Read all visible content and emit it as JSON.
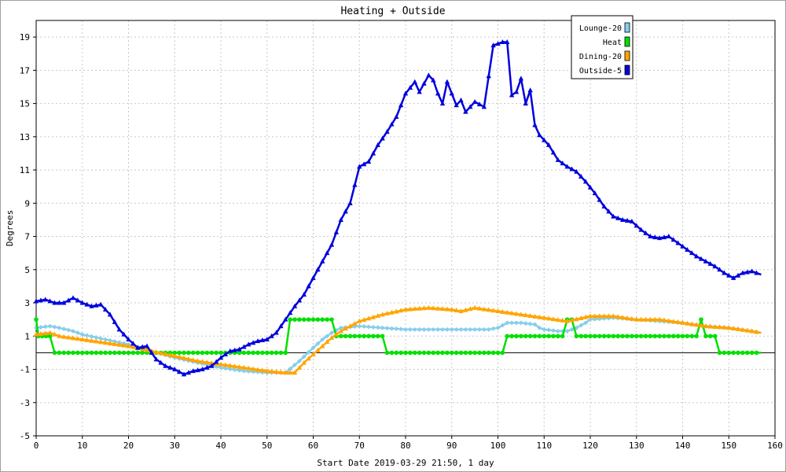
{
  "chart_data": {
    "type": "line",
    "title": "Heating + Outside",
    "xlabel": "Start Date 2019-03-29 21:50, 1 day",
    "ylabel": "Degrees",
    "xlim": [
      0,
      160
    ],
    "ylim": [
      -5,
      20
    ],
    "x_ticks": [
      0,
      10,
      20,
      30,
      40,
      50,
      60,
      70,
      80,
      90,
      100,
      110,
      120,
      130,
      140,
      150,
      160
    ],
    "y_ticks": [
      -5,
      -3,
      -1,
      1,
      3,
      5,
      7,
      9,
      11,
      13,
      15,
      17,
      19
    ],
    "grid": true,
    "zero_line": 0,
    "legend_position": "top-right",
    "series": [
      {
        "name": "Lounge-20",
        "color": "#87ceeb",
        "marker": "diamond",
        "points": [
          [
            0,
            1.5
          ],
          [
            3,
            1.6
          ],
          [
            5,
            1.5
          ],
          [
            8,
            1.3
          ],
          [
            10,
            1.1
          ],
          [
            15,
            0.8
          ],
          [
            20,
            0.5
          ],
          [
            25,
            0.1
          ],
          [
            30,
            -0.3
          ],
          [
            35,
            -0.6
          ],
          [
            40,
            -0.9
          ],
          [
            45,
            -1.1
          ],
          [
            50,
            -1.2
          ],
          [
            54,
            -1.2
          ],
          [
            57,
            -0.5
          ],
          [
            60,
            0.3
          ],
          [
            62,
            0.8
          ],
          [
            64,
            1.2
          ],
          [
            66,
            1.5
          ],
          [
            70,
            1.6
          ],
          [
            75,
            1.5
          ],
          [
            80,
            1.4
          ],
          [
            85,
            1.4
          ],
          [
            90,
            1.4
          ],
          [
            95,
            1.4
          ],
          [
            98,
            1.4
          ],
          [
            100,
            1.5
          ],
          [
            102,
            1.8
          ],
          [
            105,
            1.8
          ],
          [
            108,
            1.7
          ],
          [
            109,
            1.5
          ],
          [
            110,
            1.4
          ],
          [
            113,
            1.3
          ],
          [
            115,
            1.3
          ],
          [
            117,
            1.5
          ],
          [
            119,
            1.8
          ],
          [
            120,
            2.0
          ],
          [
            125,
            2.1
          ],
          [
            130,
            2.0
          ],
          [
            135,
            1.9
          ],
          [
            140,
            1.8
          ],
          [
            145,
            1.6
          ],
          [
            150,
            1.5
          ],
          [
            155,
            1.3
          ],
          [
            157,
            1.2
          ]
        ]
      },
      {
        "name": "Heat",
        "color": "#00e000",
        "marker": "circle",
        "points": [
          [
            0,
            2.0
          ],
          [
            0.5,
            1.0
          ],
          [
            3,
            1.0
          ],
          [
            4,
            0
          ],
          [
            54,
            0
          ],
          [
            55,
            2.0
          ],
          [
            64,
            2.0
          ],
          [
            65,
            1.0
          ],
          [
            75,
            1.0
          ],
          [
            76,
            0
          ],
          [
            101,
            0
          ],
          [
            102,
            1.0
          ],
          [
            114,
            1.0
          ],
          [
            115,
            2.0
          ],
          [
            116,
            2.0
          ],
          [
            117,
            1.0
          ],
          [
            143,
            1.0
          ],
          [
            144,
            2.0
          ],
          [
            145,
            1.0
          ],
          [
            147,
            1.0
          ],
          [
            148,
            0
          ],
          [
            157,
            0
          ]
        ]
      },
      {
        "name": "Dining-20",
        "color": "#ffa500",
        "marker": "triangle",
        "points": [
          [
            0,
            1.1
          ],
          [
            3,
            1.2
          ],
          [
            5,
            1.0
          ],
          [
            10,
            0.8
          ],
          [
            15,
            0.6
          ],
          [
            20,
            0.4
          ],
          [
            25,
            0.1
          ],
          [
            30,
            -0.2
          ],
          [
            35,
            -0.5
          ],
          [
            40,
            -0.7
          ],
          [
            45,
            -0.9
          ],
          [
            50,
            -1.1
          ],
          [
            54,
            -1.2
          ],
          [
            56,
            -1.2
          ],
          [
            58,
            -0.6
          ],
          [
            60,
            -0.1
          ],
          [
            62,
            0.4
          ],
          [
            64,
            0.9
          ],
          [
            66,
            1.3
          ],
          [
            68,
            1.6
          ],
          [
            70,
            1.9
          ],
          [
            75,
            2.3
          ],
          [
            80,
            2.6
          ],
          [
            85,
            2.7
          ],
          [
            90,
            2.6
          ],
          [
            92,
            2.5
          ],
          [
            95,
            2.7
          ],
          [
            100,
            2.5
          ],
          [
            105,
            2.3
          ],
          [
            110,
            2.1
          ],
          [
            115,
            1.9
          ],
          [
            120,
            2.2
          ],
          [
            125,
            2.2
          ],
          [
            130,
            2.0
          ],
          [
            135,
            2.0
          ],
          [
            140,
            1.8
          ],
          [
            145,
            1.6
          ],
          [
            150,
            1.5
          ],
          [
            155,
            1.3
          ],
          [
            157,
            1.2
          ]
        ]
      },
      {
        "name": "Outside-5",
        "color": "#0000dd",
        "marker": "triangle",
        "points": [
          [
            0,
            3.1
          ],
          [
            2,
            3.2
          ],
          [
            4,
            3.0
          ],
          [
            6,
            3.0
          ],
          [
            8,
            3.3
          ],
          [
            10,
            3.0
          ],
          [
            12,
            2.8
          ],
          [
            14,
            2.9
          ],
          [
            16,
            2.3
          ],
          [
            18,
            1.4
          ],
          [
            20,
            0.8
          ],
          [
            22,
            0.3
          ],
          [
            24,
            0.4
          ],
          [
            26,
            -0.4
          ],
          [
            28,
            -0.8
          ],
          [
            30,
            -1.0
          ],
          [
            32,
            -1.3
          ],
          [
            34,
            -1.1
          ],
          [
            36,
            -1.0
          ],
          [
            38,
            -0.8
          ],
          [
            40,
            -0.3
          ],
          [
            42,
            0.1
          ],
          [
            44,
            0.2
          ],
          [
            46,
            0.5
          ],
          [
            48,
            0.7
          ],
          [
            50,
            0.8
          ],
          [
            52,
            1.2
          ],
          [
            54,
            2.0
          ],
          [
            56,
            2.8
          ],
          [
            58,
            3.5
          ],
          [
            60,
            4.5
          ],
          [
            62,
            5.5
          ],
          [
            64,
            6.5
          ],
          [
            66,
            8.0
          ],
          [
            68,
            9.0
          ],
          [
            70,
            11.2
          ],
          [
            72,
            11.5
          ],
          [
            74,
            12.5
          ],
          [
            76,
            13.3
          ],
          [
            78,
            14.2
          ],
          [
            80,
            15.6
          ],
          [
            82,
            16.3
          ],
          [
            83,
            15.7
          ],
          [
            85,
            16.7
          ],
          [
            86,
            16.4
          ],
          [
            87,
            15.6
          ],
          [
            88,
            15.0
          ],
          [
            89,
            16.3
          ],
          [
            91,
            14.9
          ],
          [
            92,
            15.2
          ],
          [
            93,
            14.5
          ],
          [
            95,
            15.1
          ],
          [
            97,
            14.8
          ],
          [
            99,
            18.5
          ],
          [
            101,
            18.7
          ],
          [
            102,
            18.7
          ],
          [
            103,
            15.5
          ],
          [
            104,
            15.7
          ],
          [
            105,
            16.5
          ],
          [
            106,
            15.0
          ],
          [
            107,
            15.8
          ],
          [
            108,
            13.7
          ],
          [
            109,
            13.1
          ],
          [
            111,
            12.5
          ],
          [
            113,
            11.6
          ],
          [
            115,
            11.2
          ],
          [
            117,
            10.9
          ],
          [
            119,
            10.3
          ],
          [
            121,
            9.6
          ],
          [
            123,
            8.8
          ],
          [
            125,
            8.2
          ],
          [
            127,
            8.0
          ],
          [
            129,
            7.9
          ],
          [
            131,
            7.4
          ],
          [
            133,
            7.0
          ],
          [
            135,
            6.9
          ],
          [
            137,
            7.0
          ],
          [
            139,
            6.6
          ],
          [
            141,
            6.2
          ],
          [
            143,
            5.8
          ],
          [
            145,
            5.5
          ],
          [
            147,
            5.2
          ],
          [
            149,
            4.8
          ],
          [
            151,
            4.5
          ],
          [
            153,
            4.8
          ],
          [
            155,
            4.9
          ],
          [
            157,
            4.7
          ]
        ]
      }
    ]
  }
}
